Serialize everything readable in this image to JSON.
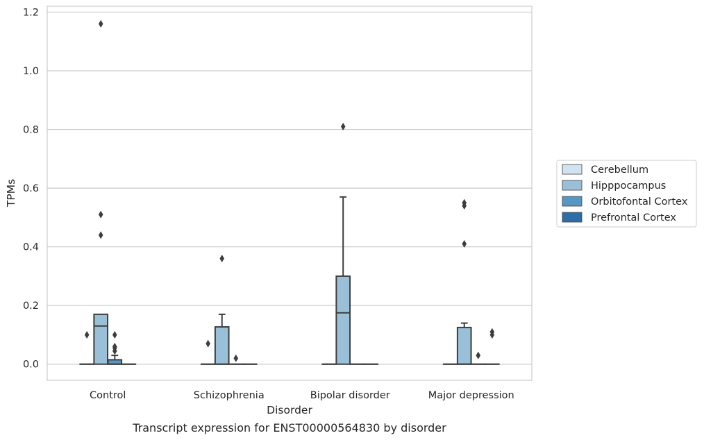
{
  "chart_data": {
    "type": "box",
    "title": "",
    "caption": "Transcript expression for ENST00000564830 by disorder",
    "xlabel": "Disorder",
    "ylabel": "TPMs",
    "ylim": [
      -0.055,
      1.22
    ],
    "yticks": [
      "0.0",
      "0.2",
      "0.4",
      "0.6",
      "0.8",
      "1.0",
      "1.2"
    ],
    "grid": true,
    "legend_position": "right",
    "categories": [
      "Control",
      "Schizophrenia",
      "Bipolar disorder",
      "Major depression"
    ],
    "series": [
      {
        "name": "Cerebellum",
        "color": "#d1e3f2",
        "boxes": [
          {
            "q1": 0,
            "median": 0,
            "q3": 0,
            "whisker_low": 0,
            "whisker_high": 0,
            "outliers": [
              0.1
            ]
          },
          {
            "q1": 0,
            "median": 0,
            "q3": 0,
            "whisker_low": 0,
            "whisker_high": 0,
            "outliers": [
              0.07
            ]
          },
          {
            "q1": 0,
            "median": 0,
            "q3": 0,
            "whisker_low": 0,
            "whisker_high": 0,
            "outliers": []
          },
          {
            "q1": 0,
            "median": 0,
            "q3": 0,
            "whisker_low": 0,
            "whisker_high": 0,
            "outliers": []
          }
        ]
      },
      {
        "name": "Hipppocampus",
        "color": "#9ac0d9",
        "boxes": [
          {
            "q1": 0,
            "median": 0.13,
            "q3": 0.17,
            "whisker_low": 0,
            "whisker_high": 0.17,
            "outliers": [
              1.16,
              0.51,
              0.44
            ]
          },
          {
            "q1": 0,
            "median": 0,
            "q3": 0.127,
            "whisker_low": 0,
            "whisker_high": 0.17,
            "outliers": [
              0.36
            ]
          },
          {
            "q1": 0,
            "median": 0.175,
            "q3": 0.3,
            "whisker_low": 0,
            "whisker_high": 0.57,
            "outliers": [
              0.81
            ]
          },
          {
            "q1": 0,
            "median": 0,
            "q3": 0.125,
            "whisker_low": 0,
            "whisker_high": 0.14,
            "outliers": [
              0.55,
              0.54,
              0.41
            ]
          }
        ]
      },
      {
        "name": "Orbitofontal Cortex",
        "color": "#5896c4",
        "boxes": [
          {
            "q1": 0,
            "median": 0,
            "q3": 0.015,
            "whisker_low": 0,
            "whisker_high": 0.03,
            "outliers": [
              0.1,
              0.06,
              0.055,
              0.045
            ]
          },
          {
            "q1": 0,
            "median": 0,
            "q3": 0,
            "whisker_low": 0,
            "whisker_high": 0,
            "outliers": [
              0.02
            ]
          },
          {
            "q1": 0,
            "median": 0,
            "q3": 0,
            "whisker_low": 0,
            "whisker_high": 0,
            "outliers": []
          },
          {
            "q1": 0,
            "median": 0,
            "q3": 0,
            "whisker_low": 0,
            "whisker_high": 0,
            "outliers": [
              0.03
            ]
          }
        ]
      },
      {
        "name": "Prefrontal Cortex",
        "color": "#2d6ea9",
        "boxes": [
          {
            "q1": 0,
            "median": 0,
            "q3": 0,
            "whisker_low": 0,
            "whisker_high": 0,
            "outliers": []
          },
          {
            "q1": 0,
            "median": 0,
            "q3": 0,
            "whisker_low": 0,
            "whisker_high": 0,
            "outliers": []
          },
          {
            "q1": 0,
            "median": 0,
            "q3": 0,
            "whisker_low": 0,
            "whisker_high": 0,
            "outliers": []
          },
          {
            "q1": 0,
            "median": 0,
            "q3": 0,
            "whisker_low": 0,
            "whisker_high": 0,
            "outliers": [
              0.11,
              0.1
            ]
          }
        ]
      }
    ]
  }
}
